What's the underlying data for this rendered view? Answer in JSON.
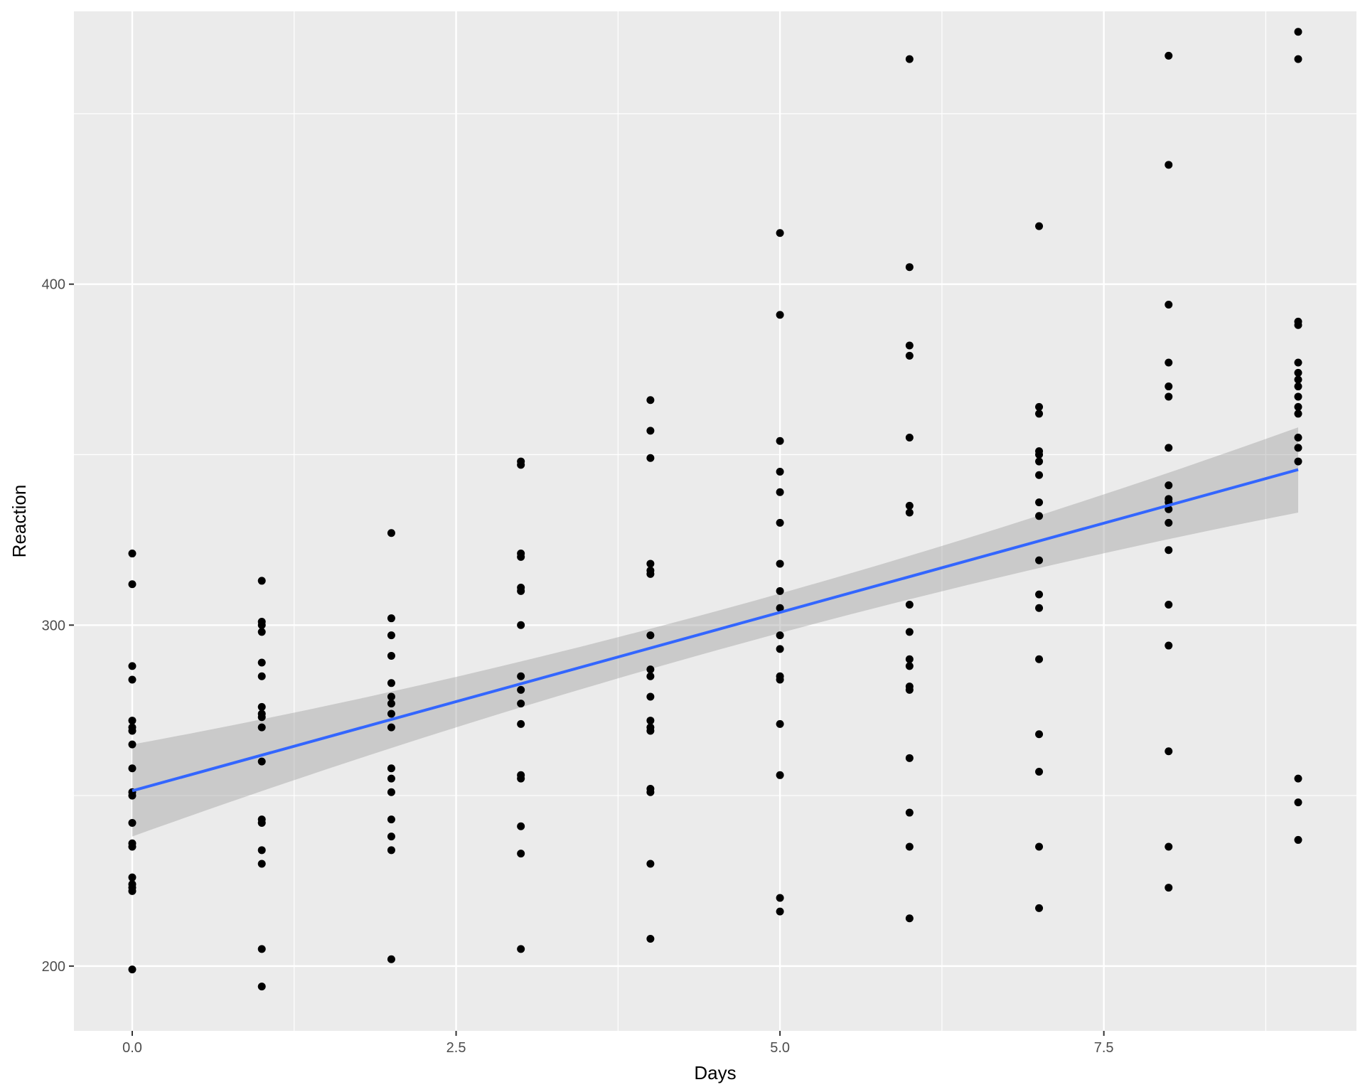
{
  "chart_data": {
    "type": "scatter",
    "xlabel": "Days",
    "ylabel": "Reaction",
    "xlim": [
      -0.45,
      9.45
    ],
    "ylim": [
      181,
      480
    ],
    "x_ticks": [
      0,
      2.5,
      5,
      7.5
    ],
    "x_tick_labels": [
      "0.0",
      "2.5",
      "5.0",
      "7.5"
    ],
    "y_ticks": [
      200,
      300,
      400
    ],
    "y_tick_labels": [
      "200",
      "300",
      "400"
    ],
    "grid": true,
    "legend": "none",
    "colors": {
      "panel_background": "#EBEBEB",
      "grid": "#FFFFFF",
      "points": "#000000",
      "trend_line": "#3366FF",
      "confidence_band": "#999999"
    },
    "points": [
      [
        0,
        199
      ],
      [
        0,
        222
      ],
      [
        0,
        223
      ],
      [
        0,
        224
      ],
      [
        0,
        226
      ],
      [
        0,
        235
      ],
      [
        0,
        236
      ],
      [
        0,
        242
      ],
      [
        0,
        250
      ],
      [
        0,
        251
      ],
      [
        0,
        258
      ],
      [
        0,
        265
      ],
      [
        0,
        269
      ],
      [
        0,
        270
      ],
      [
        0,
        272
      ],
      [
        0,
        284
      ],
      [
        0,
        288
      ],
      [
        0,
        312
      ],
      [
        0,
        321
      ],
      [
        1,
        194
      ],
      [
        1,
        205
      ],
      [
        1,
        230
      ],
      [
        1,
        234
      ],
      [
        1,
        242
      ],
      [
        1,
        243
      ],
      [
        1,
        260
      ],
      [
        1,
        270
      ],
      [
        1,
        273
      ],
      [
        1,
        274
      ],
      [
        1,
        276
      ],
      [
        1,
        285
      ],
      [
        1,
        289
      ],
      [
        1,
        298
      ],
      [
        1,
        300
      ],
      [
        1,
        301
      ],
      [
        1,
        313
      ],
      [
        2,
        202
      ],
      [
        2,
        234
      ],
      [
        2,
        238
      ],
      [
        2,
        243
      ],
      [
        2,
        251
      ],
      [
        2,
        255
      ],
      [
        2,
        258
      ],
      [
        2,
        270
      ],
      [
        2,
        274
      ],
      [
        2,
        277
      ],
      [
        2,
        279
      ],
      [
        2,
        283
      ],
      [
        2,
        291
      ],
      [
        2,
        297
      ],
      [
        2,
        302
      ],
      [
        2,
        327
      ],
      [
        3,
        205
      ],
      [
        3,
        233
      ],
      [
        3,
        241
      ],
      [
        3,
        255
      ],
      [
        3,
        256
      ],
      [
        3,
        271
      ],
      [
        3,
        277
      ],
      [
        3,
        281
      ],
      [
        3,
        285
      ],
      [
        3,
        300
      ],
      [
        3,
        310
      ],
      [
        3,
        311
      ],
      [
        3,
        320
      ],
      [
        3,
        321
      ],
      [
        3,
        347
      ],
      [
        3,
        348
      ],
      [
        4,
        208
      ],
      [
        4,
        230
      ],
      [
        4,
        251
      ],
      [
        4,
        252
      ],
      [
        4,
        269
      ],
      [
        4,
        270
      ],
      [
        4,
        272
      ],
      [
        4,
        279
      ],
      [
        4,
        285
      ],
      [
        4,
        287
      ],
      [
        4,
        297
      ],
      [
        4,
        315
      ],
      [
        4,
        316
      ],
      [
        4,
        318
      ],
      [
        4,
        349
      ],
      [
        4,
        357
      ],
      [
        4,
        366
      ],
      [
        5,
        216
      ],
      [
        5,
        220
      ],
      [
        5,
        256
      ],
      [
        5,
        271
      ],
      [
        5,
        284
      ],
      [
        5,
        285
      ],
      [
        5,
        293
      ],
      [
        5,
        297
      ],
      [
        5,
        305
      ],
      [
        5,
        310
      ],
      [
        5,
        318
      ],
      [
        5,
        330
      ],
      [
        5,
        339
      ],
      [
        5,
        345
      ],
      [
        5,
        354
      ],
      [
        5,
        391
      ],
      [
        5,
        415
      ],
      [
        6,
        214
      ],
      [
        6,
        235
      ],
      [
        6,
        245
      ],
      [
        6,
        261
      ],
      [
        6,
        281
      ],
      [
        6,
        282
      ],
      [
        6,
        288
      ],
      [
        6,
        290
      ],
      [
        6,
        298
      ],
      [
        6,
        306
      ],
      [
        6,
        333
      ],
      [
        6,
        335
      ],
      [
        6,
        355
      ],
      [
        6,
        379
      ],
      [
        6,
        382
      ],
      [
        6,
        405
      ],
      [
        6,
        466
      ],
      [
        7,
        217
      ],
      [
        7,
        235
      ],
      [
        7,
        257
      ],
      [
        7,
        268
      ],
      [
        7,
        290
      ],
      [
        7,
        305
      ],
      [
        7,
        309
      ],
      [
        7,
        319
      ],
      [
        7,
        332
      ],
      [
        7,
        336
      ],
      [
        7,
        344
      ],
      [
        7,
        348
      ],
      [
        7,
        350
      ],
      [
        7,
        351
      ],
      [
        7,
        362
      ],
      [
        7,
        364
      ],
      [
        7,
        417
      ],
      [
        8,
        223
      ],
      [
        8,
        235
      ],
      [
        8,
        263
      ],
      [
        8,
        294
      ],
      [
        8,
        306
      ],
      [
        8,
        322
      ],
      [
        8,
        330
      ],
      [
        8,
        334
      ],
      [
        8,
        336
      ],
      [
        8,
        337
      ],
      [
        8,
        341
      ],
      [
        8,
        352
      ],
      [
        8,
        367
      ],
      [
        8,
        370
      ],
      [
        8,
        377
      ],
      [
        8,
        394
      ],
      [
        8,
        435
      ],
      [
        8,
        467
      ],
      [
        9,
        237
      ],
      [
        9,
        248
      ],
      [
        9,
        255
      ],
      [
        9,
        348
      ],
      [
        9,
        352
      ],
      [
        9,
        355
      ],
      [
        9,
        362
      ],
      [
        9,
        364
      ],
      [
        9,
        367
      ],
      [
        9,
        370
      ],
      [
        9,
        372
      ],
      [
        9,
        374
      ],
      [
        9,
        377
      ],
      [
        9,
        388
      ],
      [
        9,
        389
      ],
      [
        9,
        466
      ],
      [
        9,
        474
      ]
    ],
    "fit_line": {
      "x": [
        0,
        9
      ],
      "y": [
        251.4,
        345.6
      ]
    },
    "confidence_band": {
      "x": [
        0,
        4.5,
        9
      ],
      "lower": [
        238,
        292.5,
        333
      ],
      "upper": [
        265,
        304,
        358
      ]
    }
  }
}
